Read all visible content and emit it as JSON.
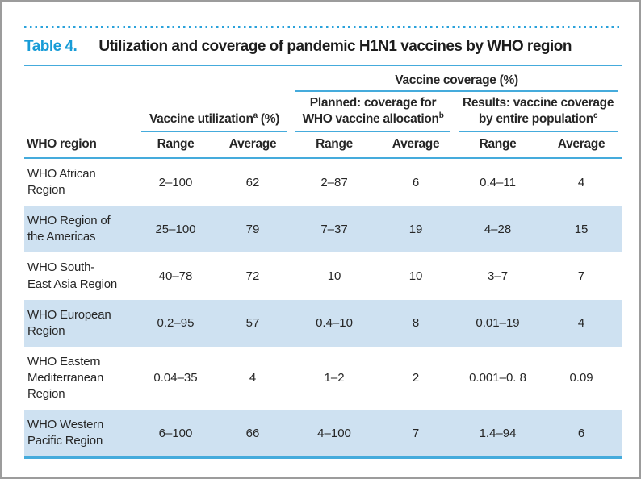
{
  "colors": {
    "accent_blue": "#189cd7",
    "rule_blue": "#45abdc",
    "row_highlight": "#cee1f1",
    "text": "#262626"
  },
  "title": {
    "label": "Table 4.",
    "text": "Utilization and coverage of pandemic H1N1 vaccines by WHO region"
  },
  "table": {
    "coverage_group_header": "Vaccine coverage (%)",
    "column_groups": [
      {
        "prefix": "Vaccine utilization",
        "footnote": "a",
        "suffix": " (%)"
      },
      {
        "prefix": "Planned: coverage for WHO vaccine allocation",
        "footnote": "b",
        "suffix": ""
      },
      {
        "prefix": "Results: vaccine coverage by entire population",
        "footnote": "c",
        "suffix": ""
      }
    ],
    "region_column_header": "WHO region",
    "subheaders": [
      "Range",
      "Average",
      "Range",
      "Average",
      "Range",
      "Average"
    ],
    "rows": [
      {
        "region": "WHO African\nRegion",
        "values": [
          "2–100",
          "62",
          "2–87",
          "6",
          "0.4–11",
          "4"
        ]
      },
      {
        "region": "WHO Region of\nthe Americas",
        "values": [
          "25–100",
          "79",
          "7–37",
          "19",
          "4–28",
          "15"
        ]
      },
      {
        "region": "WHO South-\nEast Asia Region",
        "values": [
          "40–78",
          "72",
          "10",
          "10",
          "3–7",
          "7"
        ]
      },
      {
        "region": "WHO European\nRegion",
        "values": [
          "0.2–95",
          "57",
          "0.4–10",
          "8",
          "0.01–19",
          "4"
        ]
      },
      {
        "region": "WHO Eastern\nMediterranean\nRegion",
        "values": [
          "0.04–35",
          "4",
          "1–2",
          "2",
          "0.001–0. 8",
          "0.09"
        ]
      },
      {
        "region": "WHO Western\nPacific Region",
        "values": [
          "6–100",
          "66",
          "4–100",
          "7",
          "1.4–94",
          "6"
        ]
      }
    ]
  }
}
